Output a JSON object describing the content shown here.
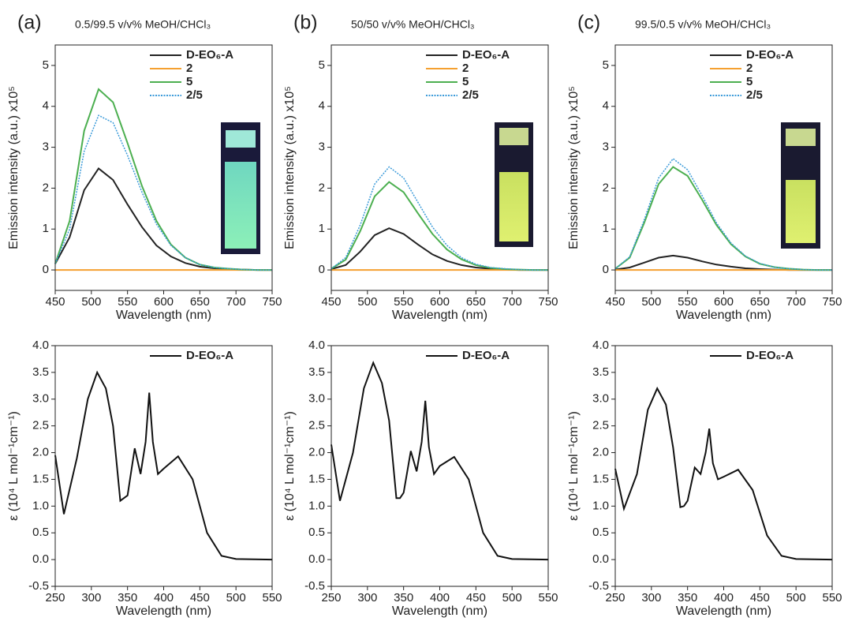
{
  "chart_data": [
    {
      "type": "line",
      "panel_label": "(a)",
      "title": "0.5/99.5 v/v% MeOH/CHCl₃",
      "xlabel": "Wavelength (nm)",
      "ylabel": "Emission intensity (a.u.) x10⁵",
      "x": [
        450,
        470,
        490,
        510,
        530,
        550,
        570,
        590,
        610,
        630,
        650,
        670,
        690,
        710,
        730,
        750
      ],
      "series": [
        {
          "name": "D-EO₆-A",
          "color": "#222222",
          "style": "solid",
          "values": [
            0.15,
            0.8,
            1.95,
            2.48,
            2.2,
            1.6,
            1.05,
            0.6,
            0.33,
            0.17,
            0.08,
            0.04,
            0.02,
            0.01,
            0,
            0
          ]
        },
        {
          "name": "2",
          "color": "#f5a030",
          "style": "solid",
          "values": [
            0,
            0,
            0,
            0,
            0,
            0,
            0,
            0,
            0,
            0,
            0,
            0,
            0,
            0,
            0,
            0
          ]
        },
        {
          "name": "5",
          "color": "#4caf50",
          "style": "solid",
          "values": [
            0.15,
            1.2,
            3.4,
            4.42,
            4.1,
            3.1,
            2.05,
            1.2,
            0.62,
            0.3,
            0.13,
            0.06,
            0.03,
            0.01,
            0,
            0
          ]
        },
        {
          "name": "2/5",
          "color": "#3a9ad9",
          "style": "dotted",
          "values": [
            0.15,
            1.0,
            2.9,
            3.78,
            3.6,
            2.8,
            1.9,
            1.12,
            0.6,
            0.3,
            0.13,
            0.06,
            0.03,
            0.01,
            0,
            0
          ]
        }
      ],
      "xlim": [
        450,
        750
      ],
      "ylim": [
        -0.5,
        5.5
      ],
      "xticks": [
        450,
        500,
        550,
        600,
        650,
        700,
        750
      ],
      "yticks": [
        0,
        1,
        2,
        3,
        4,
        5
      ],
      "legend": "upper right"
    },
    {
      "type": "line",
      "panel_label": "(b)",
      "title": "50/50 v/v% MeOH/CHCl₃",
      "xlabel": "Wavelength (nm)",
      "ylabel": "Emission intensity (a.u.) x10⁵",
      "x": [
        450,
        470,
        490,
        510,
        530,
        550,
        570,
        590,
        610,
        630,
        650,
        670,
        690,
        710,
        730,
        750
      ],
      "series": [
        {
          "name": "D-EO₆-A",
          "color": "#222222",
          "style": "solid",
          "values": [
            0.02,
            0.12,
            0.45,
            0.85,
            1.02,
            0.88,
            0.62,
            0.38,
            0.22,
            0.12,
            0.06,
            0.03,
            0.01,
            0,
            0,
            0
          ]
        },
        {
          "name": "2",
          "color": "#f5a030",
          "style": "solid",
          "values": [
            0,
            0,
            0,
            0,
            0,
            0,
            0,
            0,
            0,
            0,
            0,
            0,
            0,
            0,
            0,
            0
          ]
        },
        {
          "name": "5",
          "color": "#4caf50",
          "style": "solid",
          "values": [
            0.03,
            0.25,
            0.95,
            1.8,
            2.15,
            1.9,
            1.38,
            0.88,
            0.5,
            0.26,
            0.12,
            0.05,
            0.02,
            0.01,
            0,
            0
          ]
        },
        {
          "name": "2/5",
          "color": "#3a9ad9",
          "style": "dotted",
          "values": [
            0.03,
            0.3,
            1.1,
            2.1,
            2.52,
            2.25,
            1.65,
            1.05,
            0.6,
            0.3,
            0.14,
            0.06,
            0.03,
            0.01,
            0,
            0
          ]
        }
      ],
      "xlim": [
        450,
        750
      ],
      "ylim": [
        -0.5,
        5.5
      ],
      "xticks": [
        450,
        500,
        550,
        600,
        650,
        700,
        750
      ],
      "yticks": [
        0,
        1,
        2,
        3,
        4,
        5
      ],
      "legend": "upper right"
    },
    {
      "type": "line",
      "panel_label": "(c)",
      "title": "99.5/0.5 v/v% MeOH/CHCl₃",
      "xlabel": "Wavelength (nm)",
      "ylabel": "Emission intensity (a.u.) x10⁵",
      "x": [
        450,
        470,
        490,
        510,
        530,
        550,
        570,
        590,
        610,
        630,
        650,
        670,
        690,
        710,
        730,
        750
      ],
      "series": [
        {
          "name": "D-EO₆-A",
          "color": "#222222",
          "style": "solid",
          "values": [
            0.01,
            0.06,
            0.18,
            0.3,
            0.35,
            0.3,
            0.21,
            0.13,
            0.08,
            0.04,
            0.02,
            0.01,
            0,
            0,
            0,
            0
          ]
        },
        {
          "name": "2",
          "color": "#f5a030",
          "style": "solid",
          "values": [
            0,
            0,
            0,
            0,
            0,
            0,
            0,
            0,
            0,
            0,
            0,
            0,
            0,
            0,
            0,
            0
          ]
        },
        {
          "name": "5",
          "color": "#4caf50",
          "style": "solid",
          "values": [
            0.03,
            0.3,
            1.15,
            2.1,
            2.52,
            2.3,
            1.72,
            1.1,
            0.63,
            0.33,
            0.15,
            0.07,
            0.03,
            0.01,
            0,
            0
          ]
        },
        {
          "name": "2/5",
          "color": "#3a9ad9",
          "style": "dotted",
          "values": [
            0.03,
            0.32,
            1.22,
            2.25,
            2.72,
            2.45,
            1.82,
            1.15,
            0.66,
            0.34,
            0.16,
            0.07,
            0.03,
            0.01,
            0,
            0
          ]
        }
      ],
      "xlim": [
        450,
        750
      ],
      "ylim": [
        -0.5,
        5.5
      ],
      "xticks": [
        450,
        500,
        550,
        600,
        650,
        700,
        750
      ],
      "yticks": [
        0,
        1,
        2,
        3,
        4,
        5
      ],
      "legend": "upper right"
    },
    {
      "type": "line",
      "xlabel": "Wavelength (nm)",
      "ylabel": "ε (10⁴ L mol⁻¹cm⁻¹)",
      "x": [
        250,
        262,
        280,
        295,
        308,
        320,
        330,
        340,
        345,
        350,
        360,
        368,
        375,
        380,
        385,
        392,
        400,
        420,
        440,
        460,
        480,
        500,
        550
      ],
      "series": [
        {
          "name": "D-EO₆-A",
          "color": "#111111",
          "style": "solid",
          "values": [
            1.95,
            0.85,
            1.9,
            3.0,
            3.5,
            3.2,
            2.5,
            1.1,
            1.15,
            1.2,
            2.08,
            1.6,
            2.2,
            3.12,
            2.2,
            1.6,
            1.7,
            1.93,
            1.5,
            0.5,
            0.07,
            0.01,
            0
          ]
        }
      ],
      "xlim": [
        250,
        550
      ],
      "ylim": [
        -0.5,
        4.0
      ],
      "xticks": [
        250,
        300,
        350,
        400,
        450,
        500,
        550
      ],
      "yticks": [
        -0.5,
        {
          "value": 0,
          "label": "0.0"
        },
        0.5,
        {
          "value": 1,
          "label": "1.0"
        },
        1.5,
        {
          "value": 2,
          "label": "2.0"
        },
        2.5,
        {
          "value": 3,
          "label": "3.0"
        },
        3.5,
        {
          "value": 4,
          "label": "4.0"
        }
      ],
      "legend": "upper right"
    },
    {
      "type": "line",
      "xlabel": "Wavelength (nm)",
      "ylabel": "ε (10⁴ L mol⁻¹cm⁻¹)",
      "x": [
        250,
        262,
        280,
        295,
        308,
        320,
        330,
        340,
        345,
        350,
        360,
        368,
        375,
        380,
        385,
        392,
        400,
        420,
        440,
        460,
        480,
        500,
        550
      ],
      "series": [
        {
          "name": "D-EO₆-A",
          "color": "#111111",
          "style": "solid",
          "values": [
            2.15,
            1.1,
            2.0,
            3.2,
            3.68,
            3.3,
            2.6,
            1.15,
            1.15,
            1.25,
            2.03,
            1.65,
            2.2,
            2.97,
            2.1,
            1.6,
            1.75,
            1.92,
            1.5,
            0.5,
            0.07,
            0.01,
            0
          ]
        }
      ],
      "xlim": [
        250,
        550
      ],
      "ylim": [
        -0.5,
        4.0
      ],
      "xticks": [
        250,
        300,
        350,
        400,
        450,
        500,
        550
      ],
      "yticks": [
        -0.5,
        {
          "value": 0,
          "label": "0.0"
        },
        0.5,
        {
          "value": 1,
          "label": "1.0"
        },
        1.5,
        {
          "value": 2,
          "label": "2.0"
        },
        2.5,
        {
          "value": 3,
          "label": "3.0"
        },
        3.5,
        {
          "value": 4,
          "label": "4.0"
        }
      ],
      "legend": "upper right"
    },
    {
      "type": "line",
      "xlabel": "Wavelength (nm)",
      "ylabel": "ε (10⁴ L mol⁻¹cm⁻¹)",
      "x": [
        250,
        262,
        280,
        295,
        308,
        320,
        330,
        340,
        345,
        350,
        360,
        368,
        375,
        380,
        385,
        392,
        400,
        420,
        440,
        460,
        480,
        500,
        550
      ],
      "series": [
        {
          "name": "D-EO₆-A",
          "color": "#111111",
          "style": "solid",
          "values": [
            1.7,
            0.95,
            1.6,
            2.8,
            3.2,
            2.9,
            2.1,
            0.98,
            1.0,
            1.1,
            1.72,
            1.6,
            2.0,
            2.45,
            1.8,
            1.5,
            1.55,
            1.68,
            1.3,
            0.45,
            0.07,
            0.01,
            0
          ]
        }
      ],
      "xlim": [
        250,
        550
      ],
      "ylim": [
        -0.5,
        4.0
      ],
      "xticks": [
        250,
        300,
        350,
        400,
        450,
        500,
        550
      ],
      "yticks": [
        -0.5,
        {
          "value": 0,
          "label": "0.0"
        },
        0.5,
        {
          "value": 1,
          "label": "1.0"
        },
        1.5,
        {
          "value": 2,
          "label": "2.0"
        },
        2.5,
        {
          "value": 3,
          "label": "3.0"
        },
        3.5,
        {
          "value": 4,
          "label": "4.0"
        }
      ],
      "legend": "upper right"
    }
  ]
}
